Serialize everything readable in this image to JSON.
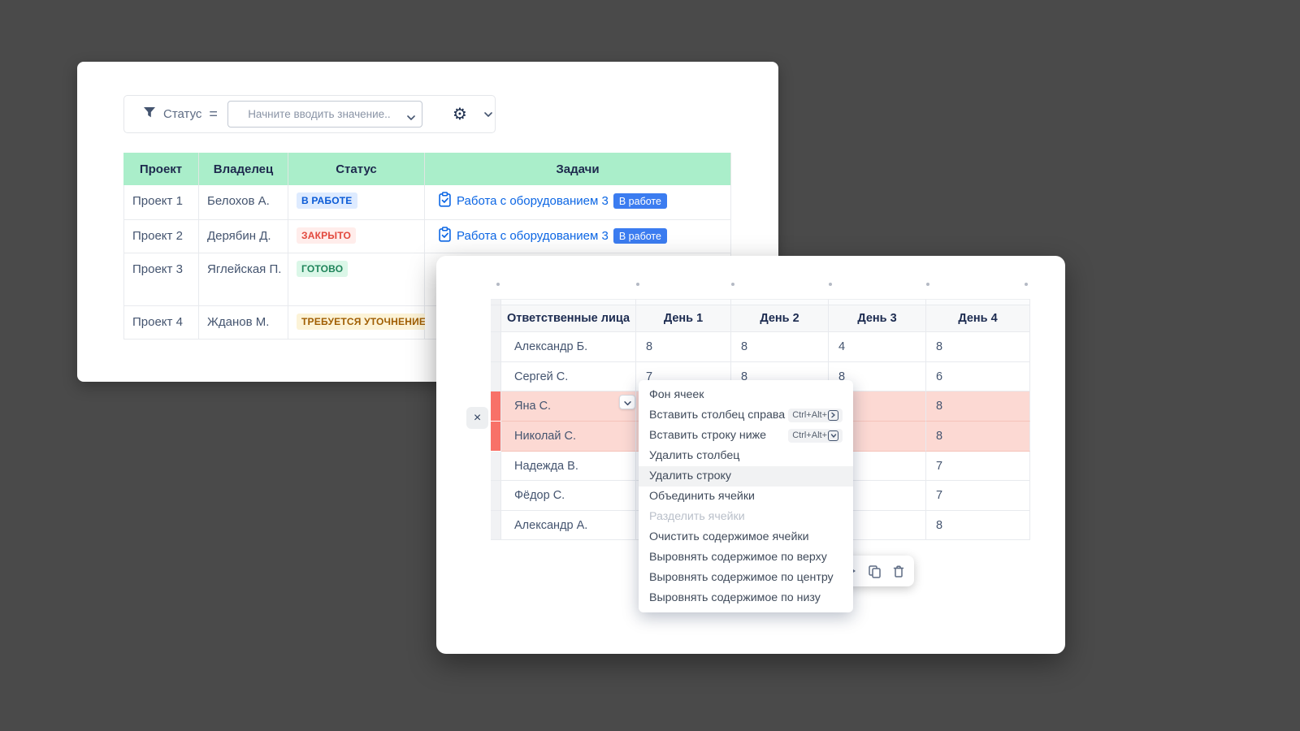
{
  "back_card": {
    "filter": {
      "icon": "funnel-icon",
      "field": "Статус",
      "operator": "=",
      "placeholder": "Начните вводить значение..",
      "settings_icon": "gear-icon"
    },
    "table": {
      "columns": [
        "Проект",
        "Владелец",
        "Статус",
        "Задачи"
      ],
      "header_bg": "#aaeeca",
      "rows": [
        {
          "project": "Проект 1",
          "owner": "Белохов А.",
          "status": {
            "label": "В РАБОТЕ",
            "bg": "#deebff",
            "color": "#0a5ad6"
          },
          "task": {
            "icon": "clipboard-check-icon",
            "label": "Работа с оборудованием 3",
            "badge": "В работе",
            "badge_bg": "#3b7cf0"
          }
        },
        {
          "project": "Проект 2",
          "owner": "Дерябин Д.",
          "status": {
            "label": "ЗАКРЫТО",
            "bg": "#ffedeb",
            "color": "#e2483d"
          },
          "task": {
            "icon": "clipboard-check-icon",
            "label": "Работа с оборудованием 3",
            "badge": "В работе",
            "badge_bg": "#3b7cf0"
          }
        },
        {
          "project": "Проект 3",
          "owner": "Яглейская П.",
          "status": {
            "label": "ГОТОВО",
            "bg": "#dbf7e8",
            "color": "#1f845a"
          },
          "task": {
            "icon": "clipboard-check-icon",
            "label": "",
            "badge": ""
          }
        },
        {
          "project": "Проект 4",
          "owner": "Жданов М.",
          "status": {
            "label": "ТРЕБУЕТСЯ УТОЧНЕНИЕ",
            "bg": "#fcf3d7",
            "color": "#a05e03"
          },
          "task": {
            "icon": "clipboard-check-icon",
            "label": "",
            "badge": ""
          }
        }
      ]
    }
  },
  "front_card": {
    "close_label": "×",
    "row_options_icon": "chevron-down-icon",
    "selection_colors": {
      "row_bg": "#fcd9d3",
      "gutter": "#f87168"
    },
    "table": {
      "columns": [
        "Ответственные лица",
        "День 1",
        "День 2",
        "День 3",
        "День 4"
      ],
      "rows": [
        {
          "name": "Александр Б.",
          "days": [
            "8",
            "8",
            "4",
            "8"
          ],
          "selected": false
        },
        {
          "name": "Сергей С.",
          "days": [
            "7",
            "8",
            "8",
            "6"
          ],
          "selected": false
        },
        {
          "name": "Яна С.",
          "days": [
            "",
            "",
            "",
            "8"
          ],
          "selected": true
        },
        {
          "name": "Николай С.",
          "days": [
            "",
            "",
            "",
            "8"
          ],
          "selected": true
        },
        {
          "name": "Надежда В.",
          "days": [
            "",
            "",
            "",
            "7"
          ],
          "selected": false
        },
        {
          "name": "Фёдор С.",
          "days": [
            "",
            "",
            "",
            "7"
          ],
          "selected": false
        },
        {
          "name": "Александр А.",
          "days": [
            "",
            "",
            "",
            "8"
          ],
          "selected": false
        }
      ]
    }
  },
  "context_menu": {
    "items": [
      {
        "label": "Фон ячеек"
      },
      {
        "label": "Вставить столбец справа",
        "shortcut": "Ctrl+Alt+",
        "key_icon": "arrow-right-key-icon"
      },
      {
        "label": "Вставить строку ниже",
        "shortcut": "Ctrl+Alt+",
        "key_icon": "arrow-down-key-icon"
      },
      {
        "label": "Удалить столбец"
      },
      {
        "label": "Удалить строку",
        "hover": true
      },
      {
        "label": "Объединить ячейки"
      },
      {
        "label": "Разделить ячейки",
        "disabled": true
      },
      {
        "label": "Очистить содержимое ячейки"
      },
      {
        "label": "Выровнять содержимое по верху"
      },
      {
        "label": "Выровнять содержимое по центру"
      },
      {
        "label": "Выровнять содержимое по низу"
      }
    ]
  },
  "toolbar": {
    "icons": [
      "partial-arrow-icon",
      "copy-icon",
      "trash-icon"
    ]
  }
}
